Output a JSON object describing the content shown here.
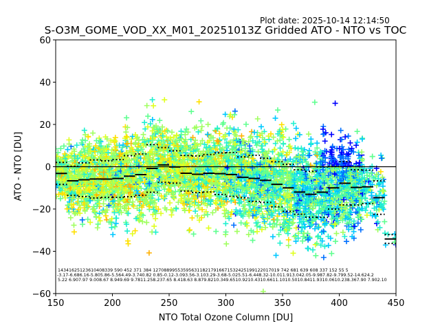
{
  "plot_date": "Plot date: 2025-10-14 12:14:50",
  "chart_data": {
    "type": "scatter",
    "title": "S-O3M_GOME_VOD_XX_M01_20251013Z Gridded ATO - NTO vs TOC",
    "xlabel": "NTO Total Ozone Column [DU]",
    "ylabel": "ATO - NTO [DU]",
    "xlim": [
      150,
      450
    ],
    "ylim": [
      -60,
      60
    ],
    "xticks": [
      "150",
      "200",
      "250",
      "300",
      "350",
      "400",
      "450"
    ],
    "xtick_values": [
      150,
      200,
      250,
      300,
      350,
      400,
      450
    ],
    "yticks": [
      "60",
      "40",
      "20",
      "0",
      "−20",
      "−40",
      "−60"
    ],
    "ytick_values": [
      60,
      40,
      20,
      0,
      -20,
      -40,
      -60
    ],
    "zero_line": 0,
    "marker": "+",
    "colormap": [
      "#0000ff",
      "#0070ff",
      "#00c8ff",
      "#20f0d0",
      "#60ff90",
      "#a0ff60",
      "#e0ff20",
      "#ffe000",
      "#ffb000"
    ],
    "bin_width": 10,
    "bins": [
      {
        "x0": 150,
        "mean": -3.17,
        "std": 5.22
      },
      {
        "x0": 160,
        "mean": -6.68,
        "std": 6.9
      },
      {
        "x0": 170,
        "mean": -6.16,
        "std": 7.97
      },
      {
        "x0": 180,
        "mean": -5.8,
        "std": 9.0
      },
      {
        "x0": 190,
        "mean": -5.86,
        "std": 8.67
      },
      {
        "x0": 200,
        "mean": -5.56,
        "std": 8.94
      },
      {
        "x0": 210,
        "mean": -4.49,
        "std": 9.69
      },
      {
        "x0": 220,
        "mean": -3.74,
        "std": 9.78
      },
      {
        "x0": 230,
        "mean": -0.82,
        "std": 11.25
      },
      {
        "x0": 240,
        "mean": 0.85,
        "std": 8.23
      },
      {
        "x0": 250,
        "mean": -0.12,
        "std": 7.65
      },
      {
        "x0": 260,
        "mean": -3.09,
        "std": 8.41
      },
      {
        "x0": 270,
        "mean": -3.56,
        "std": 8.63
      },
      {
        "x0": 280,
        "mean": -3.1,
        "std": 8.87
      },
      {
        "x0": 290,
        "mean": -3.29,
        "std": 9.82
      },
      {
        "x0": 300,
        "mean": -3.68,
        "std": 10.34
      },
      {
        "x0": 310,
        "mean": -5.02,
        "std": 9.65
      },
      {
        "x0": 320,
        "mean": -5.51,
        "std": 10.92
      },
      {
        "x0": 330,
        "mean": -6.44,
        "std": 10.43
      },
      {
        "x0": 340,
        "mean": -8.32,
        "std": 10.66
      },
      {
        "x0": 350,
        "mean": -10.01,
        "std": 11.1
      },
      {
        "x0": 360,
        "mean": -11.98,
        "std": 10.5
      },
      {
        "x0": 370,
        "mean": -13.04,
        "std": 10.84
      },
      {
        "x0": 380,
        "mean": -12.05,
        "std": 11.93
      },
      {
        "x0": 390,
        "mean": -9.98,
        "std": 10.06
      },
      {
        "x0": 400,
        "mean": -7.82,
        "std": 10.23
      },
      {
        "x0": 410,
        "mean": -9.79,
        "std": 8.36
      },
      {
        "x0": 420,
        "mean": -9.52,
        "std": 7.9
      },
      {
        "x0": 430,
        "mean": -14.62,
        "std": 7.9
      },
      {
        "x0": 440,
        "mean": -34.2,
        "std": 2.1
      }
    ],
    "annotation_rows": [
      "14341625123610408339  590  452  371  384 1270889955359563118217916671532425199122017019 742  681  639  608  337  152   55    5",
      "-3.17-6.686.16-5.805.86-5.564.49-3.740.82 0.85-0.12-3.093.56-3.103.29-3.68-5.025.51-6.448.32-10.011.913.042.05-9.987.82-9.799.52-14.624.2",
      "5.22 6.907.97 9.008.67 8.949.69 9.7811.258.237.65 8.418.63 8.879.8210.349.6510.9210.4310.6611.1010.5010.8411.9310.0610.238.367.90 7.902.10"
    ]
  }
}
